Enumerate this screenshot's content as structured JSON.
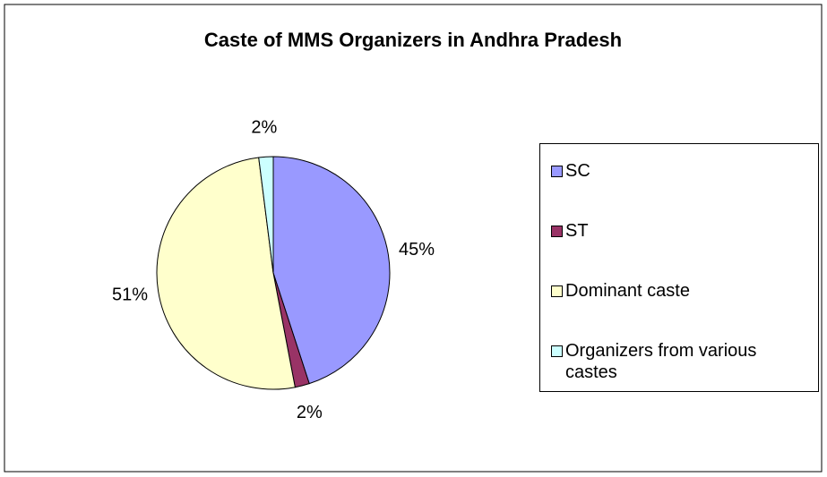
{
  "chart_data": {
    "type": "pie",
    "title": "Caste of MMS Organizers in Andhra Pradesh",
    "categories": [
      "SC",
      "ST",
      "Dominant caste",
      "Organizers from various castes"
    ],
    "values": [
      45,
      2,
      51,
      2
    ],
    "value_labels": [
      "45%",
      "2%",
      "51%",
      "2%"
    ],
    "colors": [
      "#9999ff",
      "#993366",
      "#ffffcc",
      "#ccffff"
    ],
    "legend": "right"
  }
}
